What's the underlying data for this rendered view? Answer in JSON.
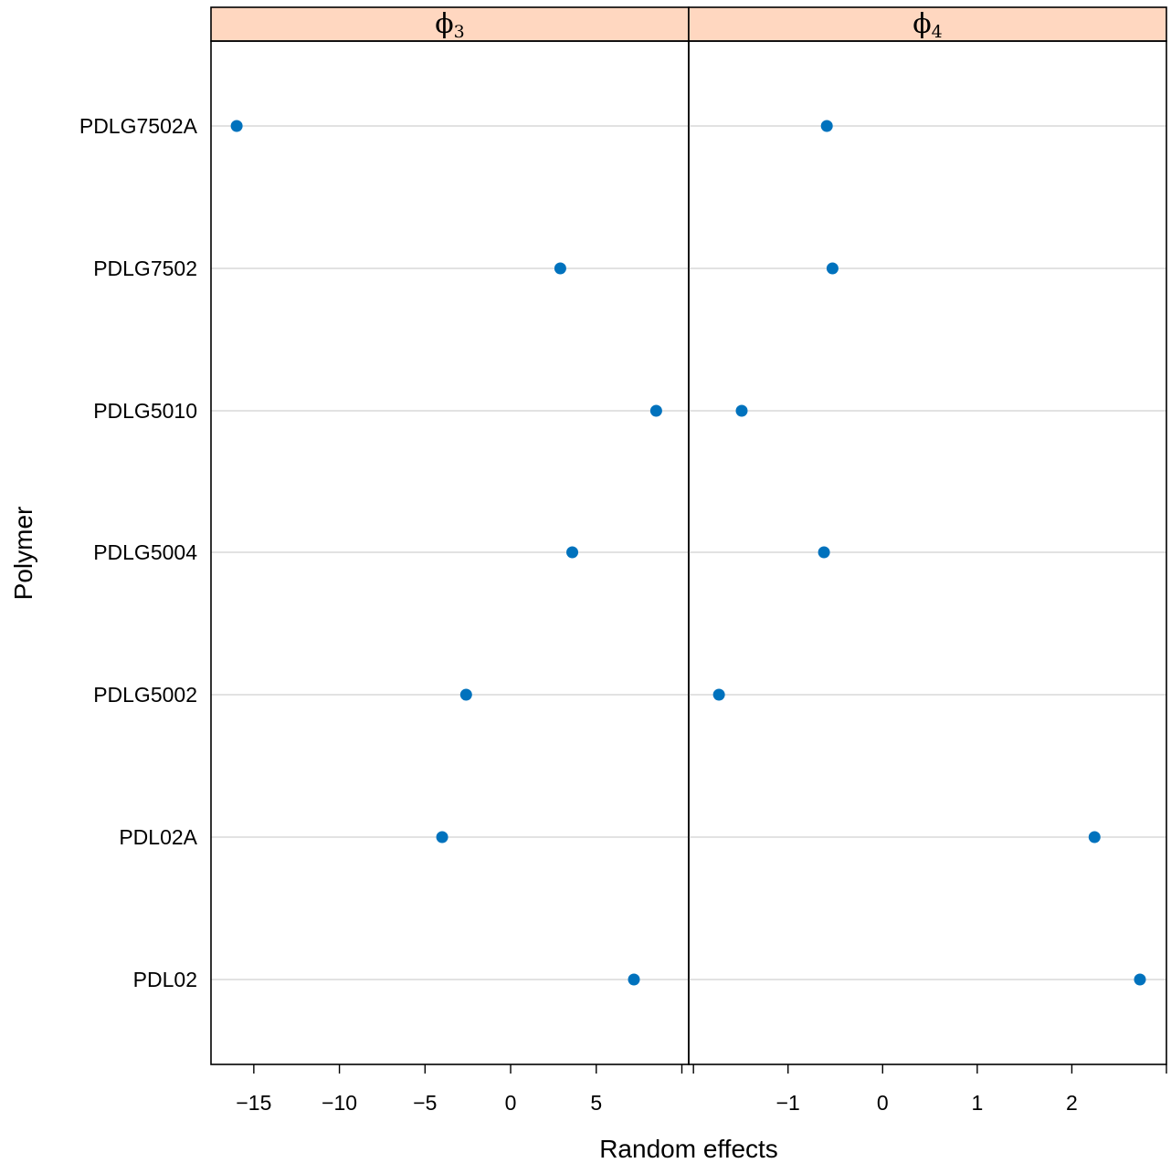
{
  "chart_data": {
    "type": "scatter",
    "ylabel": "Polymer",
    "xlabel": "Random effects",
    "categories": [
      "PDL02",
      "PDL02A",
      "PDLG5002",
      "PDLG5004",
      "PDLG5010",
      "PDLG7502",
      "PDLG7502A"
    ],
    "colors": {
      "point": "#0072bd",
      "strip": "#ffd7c0",
      "grid": "#d9d9d9"
    },
    "panels": [
      {
        "strip_symbol": "ϕ",
        "strip_sub": "3",
        "xlim": [
          -17.5,
          10.4
        ],
        "ticks": [
          -15,
          -10,
          -5,
          0,
          5,
          10
        ],
        "tick_labels": [
          "−15",
          "−10",
          "−5",
          "0",
          "5",
          ""
        ],
        "values": [
          7.2,
          -4.0,
          -2.6,
          3.6,
          8.5,
          2.9,
          -16.0
        ]
      },
      {
        "strip_symbol": "ϕ",
        "strip_sub": "4",
        "xlim": [
          -2.05,
          3.0
        ],
        "ticks": [
          -2,
          -1,
          0,
          1,
          2,
          3
        ],
        "tick_labels": [
          "",
          "−1",
          "0",
          "1",
          "2",
          ""
        ],
        "values": [
          2.72,
          2.24,
          -1.73,
          -0.62,
          -1.49,
          -0.53,
          -0.59
        ]
      }
    ]
  }
}
